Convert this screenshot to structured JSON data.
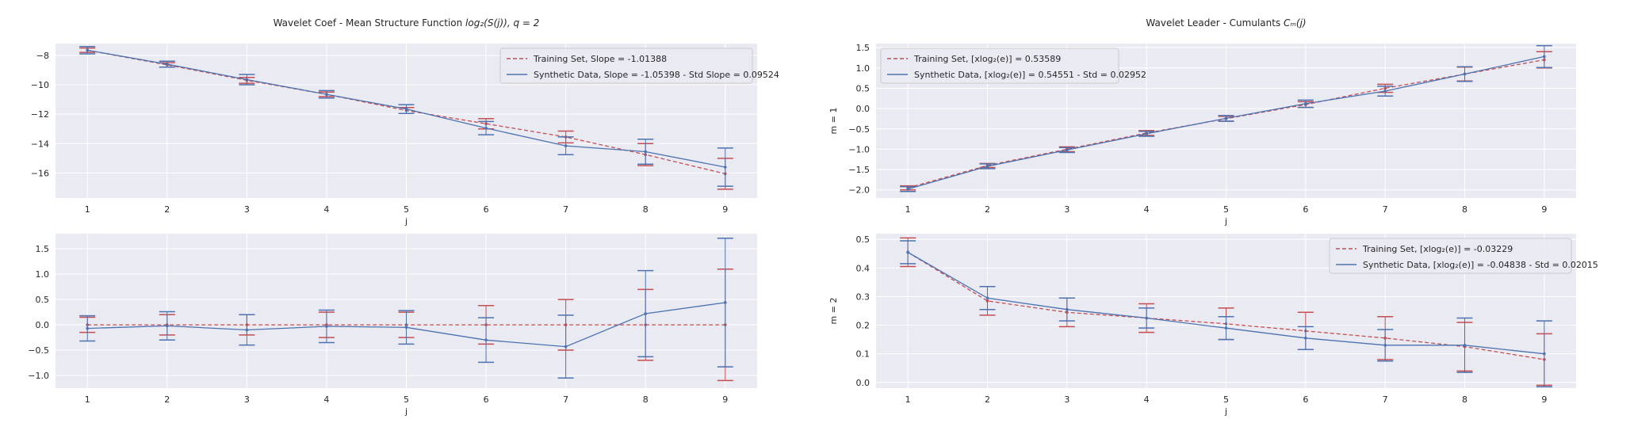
{
  "colors": {
    "train": "#c44e52",
    "synth": "#4c72b0",
    "axes_bg": "#eaeaf2",
    "grid": "#ffffff"
  },
  "chart_data": [
    {
      "type": "line",
      "title": "Wavelet Coef - Mean Structure Function log₂(S(j)), q = 2",
      "title_plain": "Wavelet Coef - Mean Structure Function ",
      "title_math": "log₂(S(j)), q = 2",
      "xlabel": "j",
      "ylabel": "",
      "x": [
        1,
        2,
        3,
        4,
        5,
        6,
        7,
        8,
        9
      ],
      "xlim": [
        0.6,
        9.4
      ],
      "ylim": [
        -17.7,
        -7.2
      ],
      "yticks": [
        -8,
        -10,
        -12,
        -14,
        -16
      ],
      "ytick_labels": [
        "−8",
        "−10",
        "−12",
        "−14",
        "−16"
      ],
      "legend": "top-right",
      "series": [
        {
          "name": "Training Set, Slope = -1.01388",
          "style": "dashed",
          "color": "train",
          "values": [
            -7.65,
            -8.65,
            -9.7,
            -10.65,
            -11.75,
            -12.65,
            -13.55,
            -14.75,
            -16.05
          ],
          "err": [
            0.15,
            0.15,
            0.2,
            0.15,
            0.2,
            0.35,
            0.4,
            0.75,
            1.05
          ]
        },
        {
          "name": "Synthetic Data, Slope = -1.05398 - Std Slope = 0.09524",
          "style": "solid",
          "color": "synth",
          "values": [
            -7.65,
            -8.6,
            -9.65,
            -10.65,
            -11.65,
            -12.95,
            -14.15,
            -14.55,
            -15.6
          ],
          "err": [
            0.25,
            0.2,
            0.35,
            0.25,
            0.3,
            0.45,
            0.6,
            0.85,
            1.3
          ]
        }
      ]
    },
    {
      "type": "line",
      "title": "",
      "xlabel": "j",
      "ylabel": "",
      "x": [
        1,
        2,
        3,
        4,
        5,
        6,
        7,
        8,
        9
      ],
      "xlim": [
        0.6,
        9.4
      ],
      "ylim": [
        -1.25,
        1.8
      ],
      "yticks": [
        1.5,
        1.0,
        0.5,
        0.0,
        -0.5,
        -1.0
      ],
      "ytick_labels": [
        "1.5",
        "1.0",
        "0.5",
        "0.0",
        "−0.5",
        "−1.0"
      ],
      "legend": "none",
      "series": [
        {
          "name": "",
          "style": "dashed",
          "color": "train",
          "values": [
            0,
            0,
            0,
            0,
            0,
            0,
            0,
            0,
            0
          ],
          "err": [
            0.15,
            0.2,
            0.2,
            0.25,
            0.25,
            0.38,
            0.5,
            0.7,
            1.1
          ]
        },
        {
          "name": "",
          "style": "solid",
          "color": "synth",
          "values": [
            -0.07,
            -0.02,
            -0.1,
            -0.03,
            -0.05,
            -0.3,
            -0.43,
            0.22,
            0.44
          ],
          "err": [
            0.25,
            0.28,
            0.3,
            0.32,
            0.33,
            0.44,
            0.62,
            0.85,
            1.27
          ]
        }
      ]
    },
    {
      "type": "line",
      "title": "Wavelet Leader - Cumulants C_m(j)",
      "title_plain": "Wavelet Leader - Cumulants ",
      "title_math": "Cₘ(j)",
      "xlabel": "j",
      "ylabel": "m = 1",
      "x": [
        1,
        2,
        3,
        4,
        5,
        6,
        7,
        8,
        9
      ],
      "xlim": [
        0.6,
        9.4
      ],
      "ylim": [
        -2.2,
        1.6
      ],
      "yticks": [
        1.5,
        1.0,
        0.5,
        0.0,
        -0.5,
        -1.0,
        -1.5,
        -2.0
      ],
      "ytick_labels": [
        "1.5",
        "1.0",
        "0.5",
        "0.0",
        "−0.5",
        "−1.0",
        "−1.5",
        "−2.0"
      ],
      "legend": "top-left",
      "series": [
        {
          "name": "Training Set, [xlog₂(e)] = 0.53589",
          "style": "dashed",
          "color": "train",
          "values": [
            -1.95,
            -1.4,
            -1.0,
            -0.6,
            -0.25,
            0.1,
            0.5,
            0.85,
            1.2
          ],
          "err": [
            0.05,
            0.05,
            0.06,
            0.06,
            0.06,
            0.07,
            0.1,
            0.17,
            0.2
          ]
        },
        {
          "name": "Synthetic Data, [xlog₂(e)] = 0.54551 - Std = 0.02952",
          "style": "solid",
          "color": "synth",
          "values": [
            -1.98,
            -1.42,
            -1.02,
            -0.62,
            -0.24,
            0.12,
            0.43,
            0.85,
            1.28
          ],
          "err": [
            0.06,
            0.06,
            0.06,
            0.06,
            0.07,
            0.09,
            0.12,
            0.18,
            0.27
          ]
        }
      ]
    },
    {
      "type": "line",
      "title": "",
      "xlabel": "j",
      "ylabel": "m = 2",
      "x": [
        1,
        2,
        3,
        4,
        5,
        6,
        7,
        8,
        9
      ],
      "xlim": [
        0.6,
        9.4
      ],
      "ylim": [
        -0.02,
        0.52
      ],
      "yticks": [
        0.5,
        0.4,
        0.3,
        0.2,
        0.1,
        0.0
      ],
      "ytick_labels": [
        "0.5",
        "0.4",
        "0.3",
        "0.2",
        "0.1",
        "0.0"
      ],
      "legend": "top-right",
      "series": [
        {
          "name": "Training Set, [xlog₂(e)] = -0.03229",
          "style": "dashed",
          "color": "train",
          "values": [
            0.455,
            0.285,
            0.245,
            0.225,
            0.205,
            0.18,
            0.155,
            0.125,
            0.08
          ],
          "err": [
            0.05,
            0.05,
            0.05,
            0.05,
            0.055,
            0.065,
            0.075,
            0.085,
            0.09
          ]
        },
        {
          "name": "Synthetic Data, [xlog₂(e)] = -0.04838 - Std = 0.02015",
          "style": "solid",
          "color": "synth",
          "values": [
            0.455,
            0.295,
            0.255,
            0.225,
            0.19,
            0.155,
            0.13,
            0.13,
            0.1
          ],
          "err": [
            0.04,
            0.04,
            0.04,
            0.035,
            0.04,
            0.04,
            0.055,
            0.095,
            0.115
          ]
        }
      ]
    }
  ]
}
